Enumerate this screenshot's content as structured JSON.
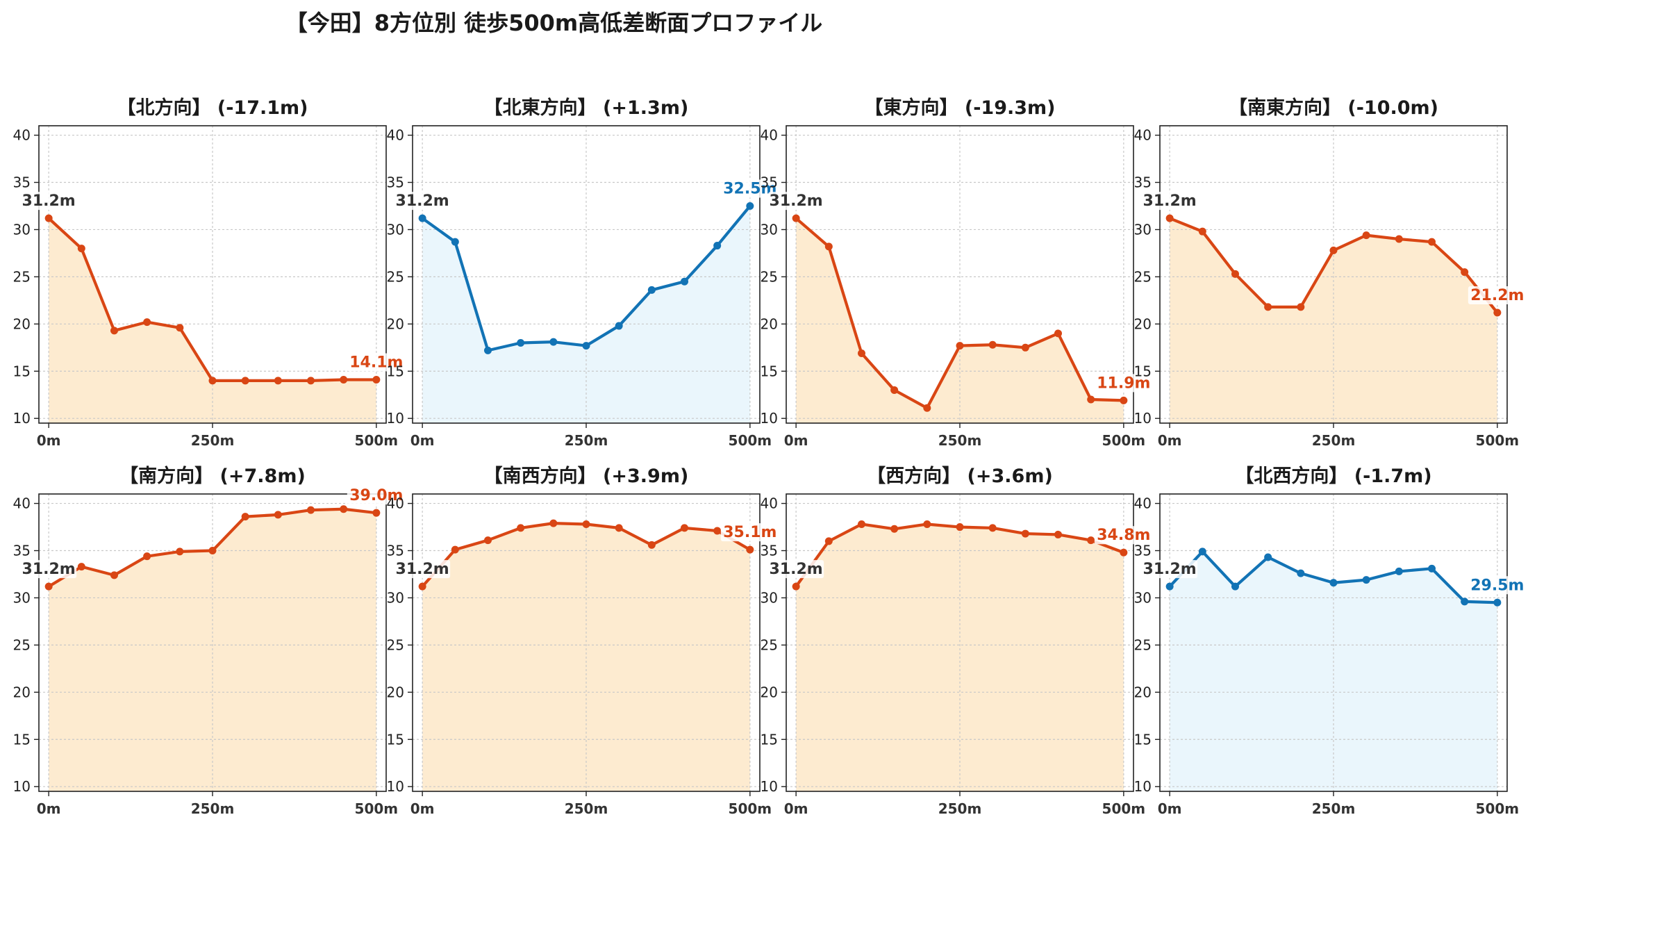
{
  "title": "【今田】8方位別 徒歩500m高低差断面プロファイル",
  "colors": {
    "down_line": "#d94614",
    "down_fill": "#fdebd0",
    "up_line": "#1273b5",
    "up_fill": "#eaf6fc",
    "start_label": "#333333"
  },
  "chart_data": [
    {
      "type": "area",
      "title": "【北方向】 (-17.1m)",
      "trend": "down",
      "x": [
        0,
        50,
        100,
        150,
        200,
        250,
        300,
        350,
        400,
        450,
        500
      ],
      "values": [
        31.2,
        28.0,
        19.3,
        20.2,
        19.6,
        14.0,
        14.0,
        14.0,
        14.0,
        14.1,
        14.1
      ],
      "start_label": "31.2m",
      "end_label": "14.1m",
      "xticks": [
        0,
        250,
        500
      ],
      "xtick_labels": [
        "0m",
        "250m",
        "500m"
      ],
      "yticks": [
        10,
        15,
        20,
        25,
        30,
        35,
        40
      ],
      "ylim": [
        9.5,
        41
      ],
      "grid": true
    },
    {
      "type": "area",
      "title": "【北東方向】 (+1.3m)",
      "trend": "up",
      "x": [
        0,
        50,
        100,
        150,
        200,
        250,
        300,
        350,
        400,
        450,
        500
      ],
      "values": [
        31.2,
        28.7,
        17.2,
        18.0,
        18.1,
        17.7,
        19.8,
        23.6,
        24.5,
        28.3,
        32.5
      ],
      "start_label": "31.2m",
      "end_label": "32.5m",
      "xticks": [
        0,
        250,
        500
      ],
      "xtick_labels": [
        "0m",
        "250m",
        "500m"
      ],
      "yticks": [
        10,
        15,
        20,
        25,
        30,
        35,
        40
      ],
      "ylim": [
        9.5,
        41
      ],
      "grid": true
    },
    {
      "type": "area",
      "title": "【東方向】 (-19.3m)",
      "trend": "down",
      "x": [
        0,
        50,
        100,
        150,
        200,
        250,
        300,
        350,
        400,
        450,
        500
      ],
      "values": [
        31.2,
        28.2,
        16.9,
        13.0,
        11.1,
        17.7,
        17.8,
        17.5,
        19.0,
        12.0,
        11.9
      ],
      "start_label": "31.2m",
      "end_label": "11.9m",
      "xticks": [
        0,
        250,
        500
      ],
      "xtick_labels": [
        "0m",
        "250m",
        "500m"
      ],
      "yticks": [
        10,
        15,
        20,
        25,
        30,
        35,
        40
      ],
      "ylim": [
        9.5,
        41
      ],
      "grid": true
    },
    {
      "type": "area",
      "title": "【南東方向】 (-10.0m)",
      "trend": "down",
      "x": [
        0,
        50,
        100,
        150,
        200,
        250,
        300,
        350,
        400,
        450,
        500
      ],
      "values": [
        31.2,
        29.8,
        25.3,
        21.8,
        21.8,
        27.8,
        29.4,
        29.0,
        28.7,
        25.5,
        21.2
      ],
      "start_label": "31.2m",
      "end_label": "21.2m",
      "xticks": [
        0,
        250,
        500
      ],
      "xtick_labels": [
        "0m",
        "250m",
        "500m"
      ],
      "yticks": [
        10,
        15,
        20,
        25,
        30,
        35,
        40
      ],
      "ylim": [
        9.5,
        41
      ],
      "grid": true
    },
    {
      "type": "area",
      "title": "【南方向】 (+7.8m)",
      "trend": "down",
      "x": [
        0,
        50,
        100,
        150,
        200,
        250,
        300,
        350,
        400,
        450,
        500
      ],
      "values": [
        31.2,
        33.3,
        32.4,
        34.4,
        34.9,
        35.0,
        38.6,
        38.8,
        39.3,
        39.4,
        39.0
      ],
      "start_label": "31.2m",
      "end_label": "39.0m",
      "xticks": [
        0,
        250,
        500
      ],
      "xtick_labels": [
        "0m",
        "250m",
        "500m"
      ],
      "yticks": [
        10,
        15,
        20,
        25,
        30,
        35,
        40
      ],
      "ylim": [
        9.5,
        41
      ],
      "grid": true
    },
    {
      "type": "area",
      "title": "【南西方向】 (+3.9m)",
      "trend": "down",
      "x": [
        0,
        50,
        100,
        150,
        200,
        250,
        300,
        350,
        400,
        450,
        500
      ],
      "values": [
        31.2,
        35.1,
        36.1,
        37.4,
        37.9,
        37.8,
        37.4,
        35.6,
        37.4,
        37.1,
        35.1
      ],
      "start_label": "31.2m",
      "end_label": "35.1m",
      "xticks": [
        0,
        250,
        500
      ],
      "xtick_labels": [
        "0m",
        "250m",
        "500m"
      ],
      "yticks": [
        10,
        15,
        20,
        25,
        30,
        35,
        40
      ],
      "ylim": [
        9.5,
        41
      ],
      "grid": true
    },
    {
      "type": "area",
      "title": "【西方向】 (+3.6m)",
      "trend": "down",
      "x": [
        0,
        50,
        100,
        150,
        200,
        250,
        300,
        350,
        400,
        450,
        500
      ],
      "values": [
        31.2,
        36.0,
        37.8,
        37.3,
        37.8,
        37.5,
        37.4,
        36.8,
        36.7,
        36.1,
        34.8
      ],
      "start_label": "31.2m",
      "end_label": "34.8m",
      "xticks": [
        0,
        250,
        500
      ],
      "xtick_labels": [
        "0m",
        "250m",
        "500m"
      ],
      "yticks": [
        10,
        15,
        20,
        25,
        30,
        35,
        40
      ],
      "ylim": [
        9.5,
        41
      ],
      "grid": true
    },
    {
      "type": "area",
      "title": "【北西方向】 (-1.7m)",
      "trend": "up",
      "x": [
        0,
        50,
        100,
        150,
        200,
        250,
        300,
        350,
        400,
        450,
        500
      ],
      "values": [
        31.2,
        34.9,
        31.2,
        34.3,
        32.6,
        31.6,
        31.9,
        32.8,
        33.1,
        29.6,
        29.5
      ],
      "start_label": "31.2m",
      "end_label": "29.5m",
      "xticks": [
        0,
        250,
        500
      ],
      "xtick_labels": [
        "0m",
        "250m",
        "500m"
      ],
      "yticks": [
        10,
        15,
        20,
        25,
        30,
        35,
        40
      ],
      "ylim": [
        9.5,
        41
      ],
      "grid": true
    }
  ]
}
